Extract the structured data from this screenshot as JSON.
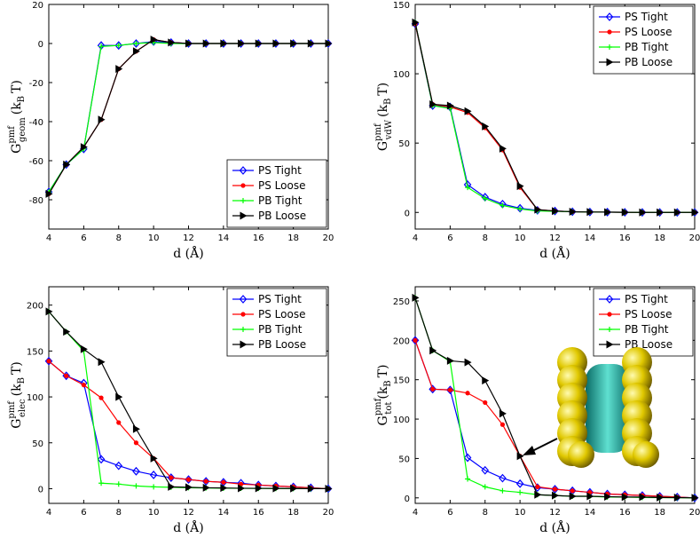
{
  "chart_data": [
    {
      "type": "line",
      "legend": "lower right",
      "xlabel": "d (Å)",
      "ylabel": {
        "main": "G",
        "sup": "pmf",
        "sub": "geom",
        "unit": "(k",
        "unit_sub": "B",
        "unit_tail": "T)"
      },
      "x": [
        4,
        5,
        6,
        7,
        8,
        9,
        10,
        11,
        12,
        13,
        14,
        15,
        16,
        17,
        18,
        19,
        20
      ],
      "xlim": [
        4,
        20
      ],
      "xticks": [
        4,
        6,
        8,
        10,
        12,
        14,
        16,
        18,
        20
      ],
      "ylim": [
        -95,
        20
      ],
      "yticks": [
        -80,
        -60,
        -40,
        -20,
        0,
        20
      ],
      "series": [
        {
          "name": "PS Tight",
          "color": "#0000ff",
          "marker": "diamond",
          "values": [
            -76,
            -62,
            -54,
            -1,
            -1,
            0,
            1,
            0.5,
            0,
            0,
            0,
            0,
            0,
            0,
            0,
            0,
            0
          ]
        },
        {
          "name": "PS Loose",
          "color": "#ff0000",
          "marker": "dot",
          "values": [
            -77,
            -62,
            -53,
            -39,
            -13,
            -4,
            2,
            0.5,
            0,
            0,
            0,
            0,
            0,
            0,
            0,
            0,
            0
          ]
        },
        {
          "name": "PB Tight",
          "color": "#00ff00",
          "marker": "plus",
          "values": [
            -76,
            -62,
            -54,
            -1.5,
            -1,
            0,
            0.5,
            0,
            0,
            0,
            0,
            0,
            0,
            0,
            0,
            0,
            0
          ]
        },
        {
          "name": "PB Loose",
          "color": "#000000",
          "marker": "triangle",
          "values": [
            -77,
            -62,
            -53,
            -39,
            -13,
            -4,
            2,
            0.5,
            0,
            0,
            0,
            0,
            0,
            0,
            0,
            0,
            0
          ]
        }
      ]
    },
    {
      "type": "line",
      "legend": "upper right",
      "xlabel": "d (Å)",
      "ylabel": {
        "main": "G",
        "sup": "pmf",
        "sub": "vdW",
        "unit": "(k",
        "unit_sub": "B",
        "unit_tail": "T)"
      },
      "x": [
        4,
        5,
        6,
        7,
        8,
        9,
        10,
        11,
        12,
        13,
        14,
        15,
        16,
        17,
        18,
        19,
        20
      ],
      "xlim": [
        4,
        20
      ],
      "xticks": [
        4,
        6,
        8,
        10,
        12,
        14,
        16,
        18,
        20
      ],
      "ylim": [
        -12,
        150
      ],
      "yticks": [
        0,
        50,
        100,
        150
      ],
      "series": [
        {
          "name": "PS Tight",
          "color": "#0000ff",
          "marker": "diamond",
          "values": [
            136,
            77,
            76,
            20,
            11,
            6,
            3,
            1.5,
            1,
            0.5,
            0.3,
            0.2,
            0.1,
            0,
            0,
            0,
            0
          ]
        },
        {
          "name": "PS Loose",
          "color": "#ff0000",
          "marker": "dot",
          "values": [
            136,
            78,
            76,
            72,
            61,
            45,
            18,
            2,
            1,
            0.5,
            0.3,
            0.2,
            0.1,
            0,
            0,
            0,
            0
          ]
        },
        {
          "name": "PB Tight",
          "color": "#00ff00",
          "marker": "plus",
          "values": [
            137,
            77,
            75,
            18,
            10,
            5,
            2.5,
            1,
            0.8,
            0.5,
            0.3,
            0.2,
            0.1,
            0,
            0,
            0,
            0
          ]
        },
        {
          "name": "PB Loose",
          "color": "#000000",
          "marker": "triangle",
          "values": [
            137,
            78,
            77,
            73,
            62,
            46,
            19,
            2,
            1,
            0.5,
            0.3,
            0.2,
            0.1,
            0,
            0,
            0,
            0
          ]
        }
      ]
    },
    {
      "type": "line",
      "legend": "upper right",
      "xlabel": "d (Å)",
      "ylabel": {
        "main": "G",
        "sup": "pmf",
        "sub": "elec",
        "unit": "(k",
        "unit_sub": "B",
        "unit_tail": "T)"
      },
      "x": [
        4,
        5,
        6,
        7,
        8,
        9,
        10,
        11,
        12,
        13,
        14,
        15,
        16,
        17,
        18,
        19,
        20
      ],
      "xlim": [
        4,
        20
      ],
      "xticks": [
        4,
        6,
        8,
        10,
        12,
        14,
        16,
        18,
        20
      ],
      "ylim": [
        -16,
        220
      ],
      "yticks": [
        0,
        50,
        100,
        150,
        200
      ],
      "series": [
        {
          "name": "PS Tight",
          "color": "#0000ff",
          "marker": "diamond",
          "values": [
            139,
            123,
            115,
            32,
            25,
            19,
            15,
            12,
            10,
            8,
            7,
            6,
            4,
            3,
            2,
            1,
            0
          ]
        },
        {
          "name": "PS Loose",
          "color": "#ff0000",
          "marker": "dot",
          "values": [
            139,
            123,
            113,
            99,
            72,
            50,
            33,
            12,
            10,
            8,
            7,
            5,
            4,
            3,
            2,
            1,
            0
          ]
        },
        {
          "name": "PB Tight",
          "color": "#00ff00",
          "marker": "plus",
          "values": [
            193,
            171,
            150,
            6,
            5,
            3,
            2,
            1.5,
            1,
            0.8,
            0.5,
            0.4,
            0.3,
            0.2,
            0.1,
            0,
            0
          ]
        },
        {
          "name": "PB Loose",
          "color": "#000000",
          "marker": "triangle",
          "values": [
            193,
            171,
            152,
            138,
            100,
            65,
            33,
            2,
            1.5,
            1,
            0.8,
            0.5,
            0.4,
            0.3,
            0.2,
            0.1,
            0
          ]
        }
      ]
    },
    {
      "type": "line",
      "legend": "upper right",
      "xlabel": "d (Å)",
      "ylabel": {
        "main": "G",
        "sup": "pmf",
        "sub": "tot",
        "unit": "(k",
        "unit_sub": "B",
        "unit_tail": "T)"
      },
      "x": [
        4,
        5,
        6,
        7,
        8,
        9,
        10,
        11,
        12,
        13,
        14,
        15,
        16,
        17,
        18,
        19,
        20
      ],
      "xlim": [
        4,
        20
      ],
      "xticks": [
        4,
        6,
        8,
        10,
        12,
        14,
        16,
        18,
        20
      ],
      "ylim": [
        -7,
        268
      ],
      "yticks": [
        0,
        50,
        100,
        150,
        200,
        250
      ],
      "series": [
        {
          "name": "PS Tight",
          "color": "#0000ff",
          "marker": "diamond",
          "values": [
            200,
            138,
            137,
            51,
            35,
            25,
            18,
            13,
            11,
            9,
            7,
            5,
            4,
            3,
            2,
            1,
            0
          ]
        },
        {
          "name": "PS Loose",
          "color": "#ff0000",
          "marker": "dot",
          "values": [
            200,
            138,
            137,
            133,
            121,
            93,
            53,
            14,
            11,
            9,
            7,
            5,
            4,
            3,
            2,
            1,
            0
          ]
        },
        {
          "name": "PB Tight",
          "color": "#00ff00",
          "marker": "plus",
          "values": [
            254,
            187,
            173,
            24,
            14,
            9,
            7,
            4,
            3,
            2,
            2,
            1,
            1,
            0.5,
            0.3,
            0.2,
            0
          ]
        },
        {
          "name": "PB Loose",
          "color": "#000000",
          "marker": "triangle",
          "values": [
            254,
            187,
            174,
            172,
            149,
            107,
            53,
            4,
            3,
            2,
            2,
            1.5,
            1,
            1,
            0.5,
            0.3,
            0
          ]
        }
      ]
    }
  ]
}
